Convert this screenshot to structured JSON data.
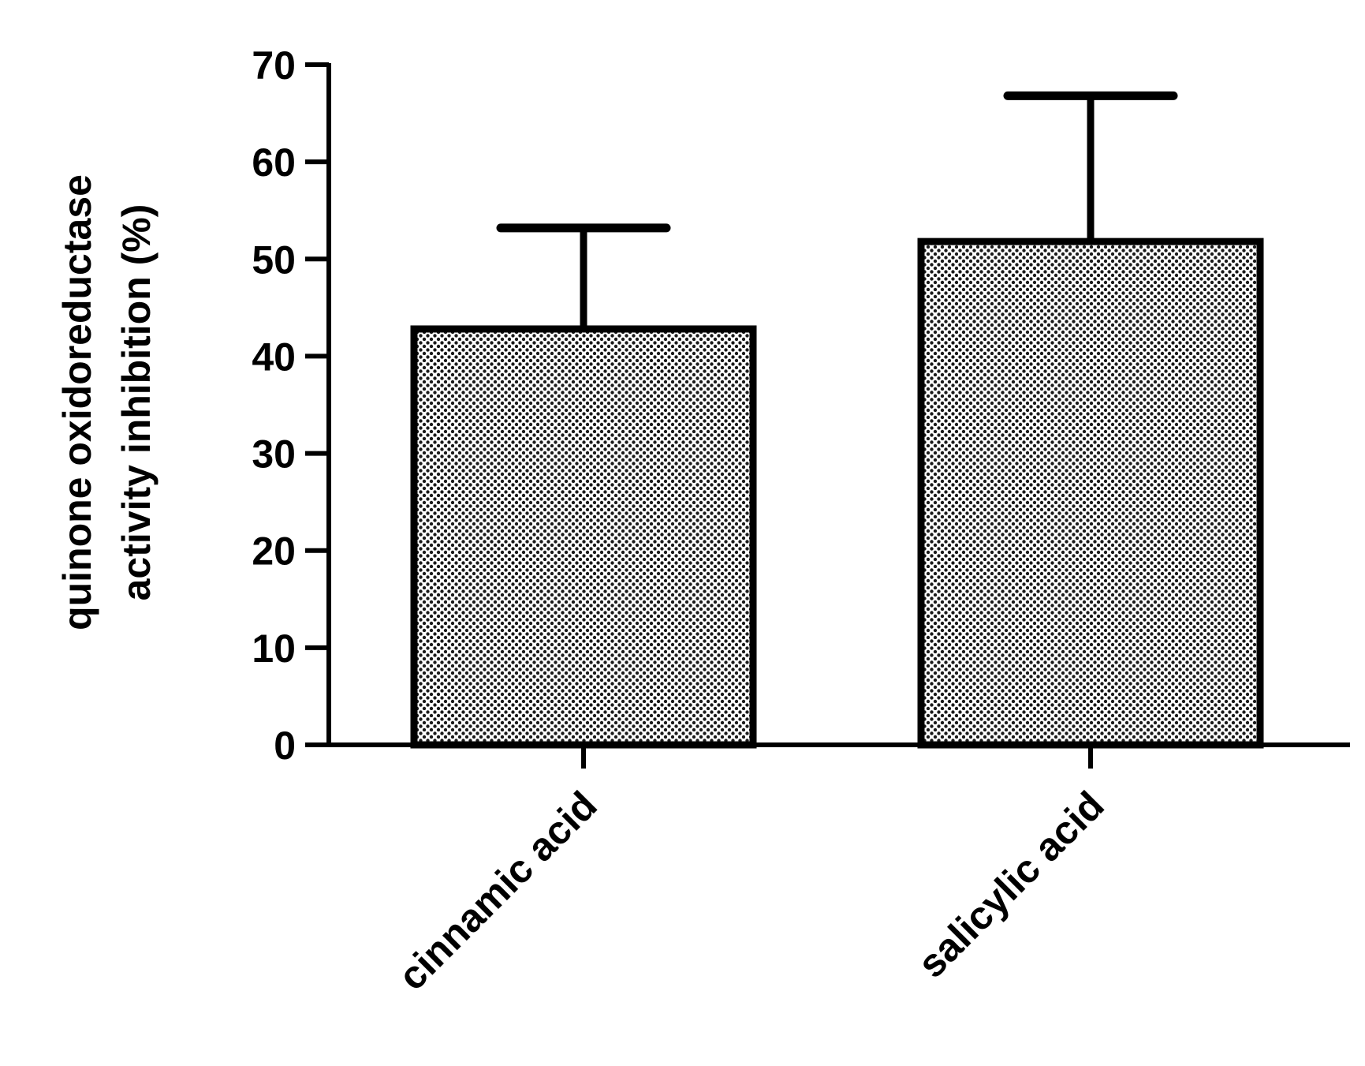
{
  "chart_data": {
    "type": "bar",
    "title": "",
    "xlabel": "",
    "ylabel": "quinone oxidoreductase activity inhibition (%)",
    "ylabel_lines": [
      "quinone oxidoreductase",
      "activity inhibition (%)"
    ],
    "categories": [
      "cinnamic acid",
      "salicylic acid"
    ],
    "values": [
      42.8,
      51.8
    ],
    "error_upper": [
      53.2,
      66.8
    ],
    "ylim": [
      0,
      70
    ],
    "yticks": [
      0,
      10,
      20,
      30,
      40,
      50,
      60,
      70
    ],
    "ytick_labels": [
      "0",
      "10",
      "20",
      "30",
      "40",
      "50",
      "60",
      "70"
    ],
    "grid": false,
    "legend": "none",
    "bar_fill": "dotted-gray",
    "colors": {
      "bar_stroke": "#000000",
      "axis": "#000000",
      "dot": "#1a1a1a",
      "background": "#ffffff"
    }
  }
}
